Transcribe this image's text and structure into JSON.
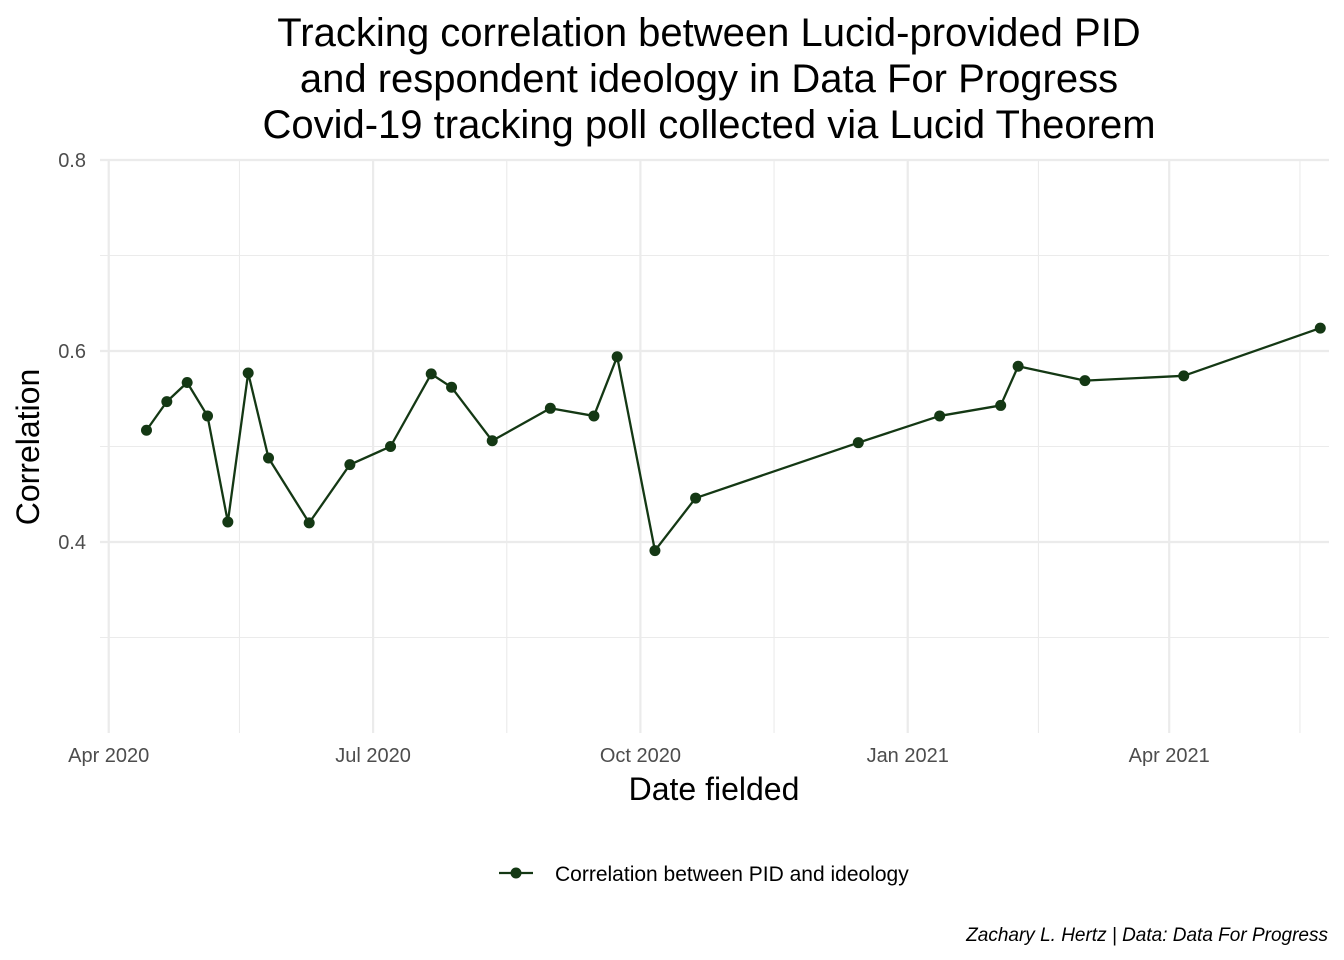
{
  "chart_data": {
    "type": "line",
    "title_lines": [
      "Tracking correlation between Lucid-provided PID",
      "and respondent ideology in Data For Progress",
      "Covid-19 tracking poll collected via Lucid Theorem"
    ],
    "xlabel": "Date fielded",
    "ylabel": "Correlation",
    "caption": "Zachary L. Hertz | Data: Data For Progress",
    "legend_position": "bottom",
    "grid": true,
    "color": "#143814",
    "ylim": [
      0.2,
      0.8
    ],
    "xlim": [
      "2020-03-29",
      "2021-05-26"
    ],
    "x_ticks": [
      {
        "date": "2020-04-01",
        "label": "Apr 2020"
      },
      {
        "date": "2020-07-01",
        "label": "Jul 2020"
      },
      {
        "date": "2020-10-01",
        "label": "Oct 2020"
      },
      {
        "date": "2021-01-01",
        "label": "Jan 2021"
      },
      {
        "date": "2021-04-01",
        "label": "Apr 2021"
      }
    ],
    "x_minor_ticks": [
      "2020-05-16",
      "2020-08-16",
      "2020-11-16",
      "2021-02-15",
      "2021-05-16"
    ],
    "y_ticks": [
      {
        "value": 0.4,
        "label": "0.4"
      },
      {
        "value": 0.6,
        "label": "0.6"
      },
      {
        "value": 0.8,
        "label": "0.8"
      }
    ],
    "y_minor_ticks": [
      0.3,
      0.5,
      0.7
    ],
    "series": [
      {
        "name": "Correlation between PID and ideology",
        "points": [
          {
            "x": "2020-04-14",
            "y": 0.517
          },
          {
            "x": "2020-04-21",
            "y": 0.547
          },
          {
            "x": "2020-04-28",
            "y": 0.567
          },
          {
            "x": "2020-05-05",
            "y": 0.532
          },
          {
            "x": "2020-05-12",
            "y": 0.421
          },
          {
            "x": "2020-05-19",
            "y": 0.577
          },
          {
            "x": "2020-05-26",
            "y": 0.488
          },
          {
            "x": "2020-06-09",
            "y": 0.42
          },
          {
            "x": "2020-06-23",
            "y": 0.481
          },
          {
            "x": "2020-07-07",
            "y": 0.5
          },
          {
            "x": "2020-07-21",
            "y": 0.576
          },
          {
            "x": "2020-07-28",
            "y": 0.562
          },
          {
            "x": "2020-08-11",
            "y": 0.506
          },
          {
            "x": "2020-08-31",
            "y": 0.54
          },
          {
            "x": "2020-09-15",
            "y": 0.532
          },
          {
            "x": "2020-09-23",
            "y": 0.594
          },
          {
            "x": "2020-10-06",
            "y": 0.391
          },
          {
            "x": "2020-10-20",
            "y": 0.446
          },
          {
            "x": "2020-12-15",
            "y": 0.504
          },
          {
            "x": "2021-01-12",
            "y": 0.532
          },
          {
            "x": "2021-02-02",
            "y": 0.543
          },
          {
            "x": "2021-02-08",
            "y": 0.584
          },
          {
            "x": "2021-03-03",
            "y": 0.569
          },
          {
            "x": "2021-04-06",
            "y": 0.574
          },
          {
            "x": "2021-05-23",
            "y": 0.624
          }
        ]
      }
    ]
  }
}
